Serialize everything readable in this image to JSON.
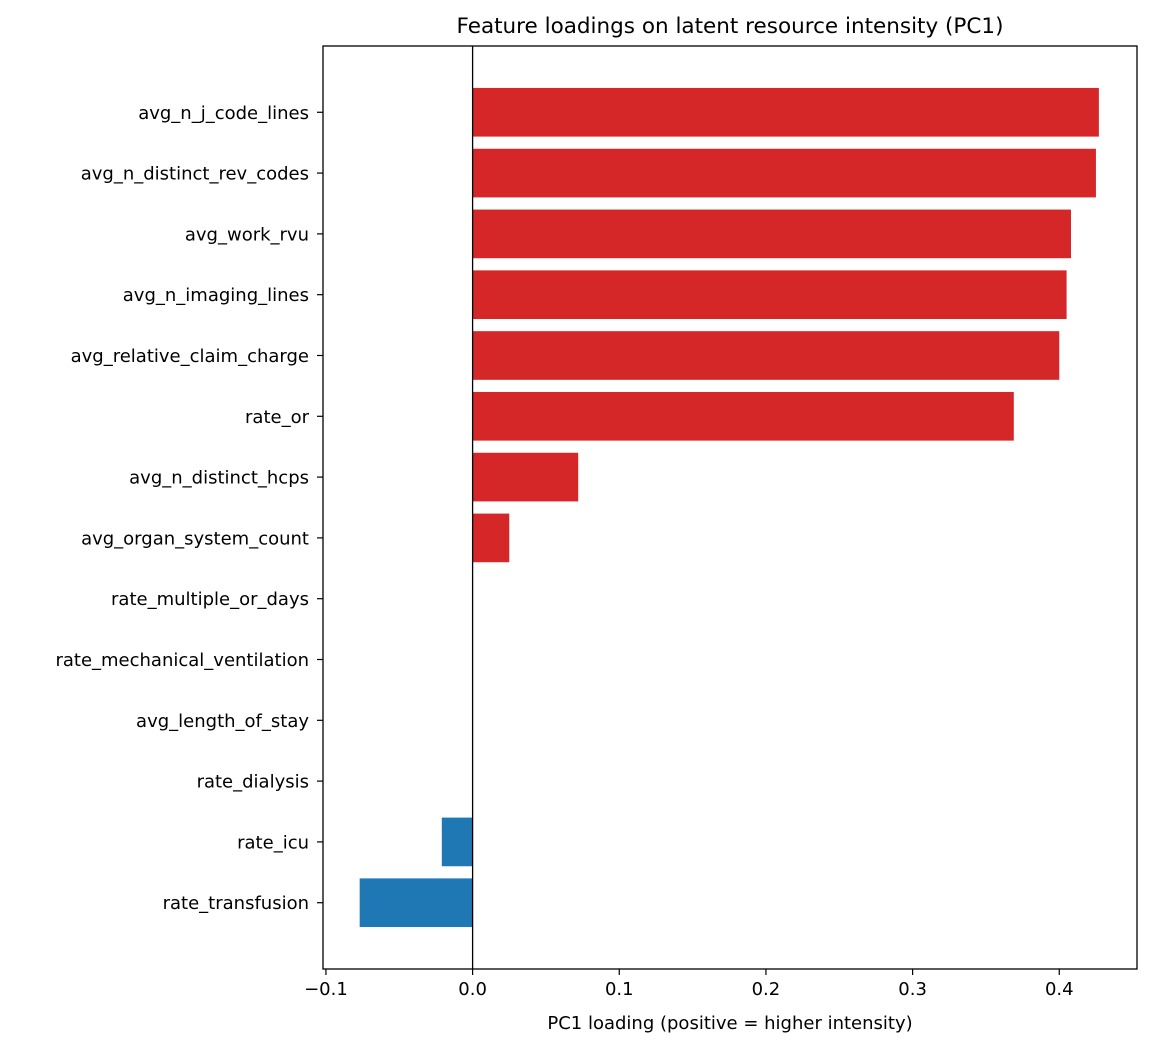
{
  "chart_data": {
    "type": "bar",
    "orientation": "horizontal",
    "title": "Feature loadings on latent resource intensity (PC1)",
    "xlabel": "PC1 loading (positive = higher intensity)",
    "ylabel": "",
    "xlim": [
      -0.102,
      0.453
    ],
    "xticks": [
      -0.1,
      0.0,
      0.1,
      0.2,
      0.3,
      0.4
    ],
    "xtick_labels": [
      "−0.1",
      "0.0",
      "0.1",
      "0.2",
      "0.3",
      "0.4"
    ],
    "grid": false,
    "zero_line": true,
    "colors": {
      "positive": "#d62728",
      "negative": "#1f77b4"
    },
    "categories": [
      "avg_n_j_code_lines",
      "avg_n_distinct_rev_codes",
      "avg_work_rvu",
      "avg_n_imaging_lines",
      "avg_relative_claim_charge",
      "rate_or",
      "avg_n_distinct_hcps",
      "avg_organ_system_count",
      "rate_multiple_or_days",
      "rate_mechanical_ventilation",
      "avg_length_of_stay",
      "rate_dialysis",
      "rate_icu",
      "rate_transfusion"
    ],
    "values": [
      0.427,
      0.425,
      0.408,
      0.405,
      0.4,
      0.369,
      0.072,
      0.025,
      0.0,
      0.0,
      0.0,
      0.0,
      -0.021,
      -0.077
    ]
  }
}
